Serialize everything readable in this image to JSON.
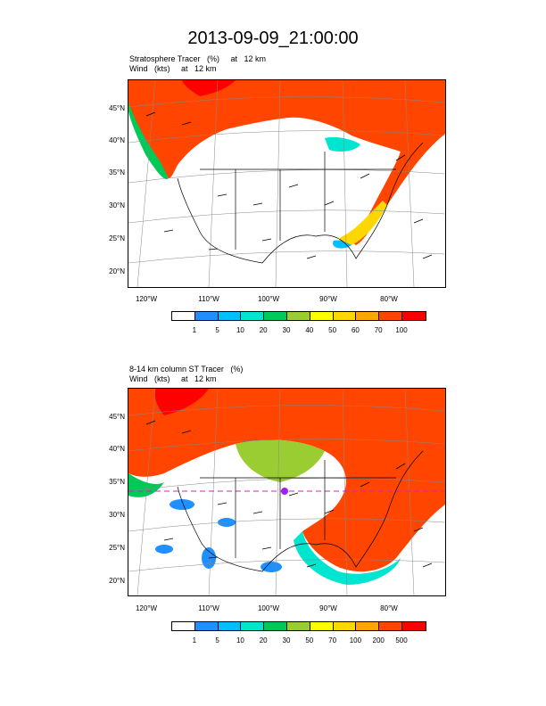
{
  "title": "2013-09-09_21:00:00",
  "panel1": {
    "subtitle_line1": "Stratosphere Tracer   (%)     at   12 km",
    "subtitle_line2": "Wind   (kts)     at   12 km",
    "colorbar_labels": [
      "1",
      "5",
      "10",
      "20",
      "30",
      "40",
      "50",
      "60",
      "70",
      "100"
    ]
  },
  "panel2": {
    "subtitle_line1": "8-14 km column ST Tracer   (%)",
    "subtitle_line2": "Wind   (kts)     at   12 km",
    "colorbar_labels": [
      "1",
      "5",
      "10",
      "20",
      "30",
      "50",
      "70",
      "100",
      "200",
      "500"
    ]
  },
  "lat_labels": [
    "45°N",
    "40°N",
    "35°N",
    "30°N",
    "25°N",
    "20°N"
  ],
  "lon_labels": [
    "120°W",
    "110°W",
    "100°W",
    "90°W",
    "80°W"
  ],
  "colorbar_colors": [
    "#ffffff",
    "#1e90ff",
    "#00bfff",
    "#00e5d0",
    "#00c957",
    "#9acd32",
    "#ffff00",
    "#ffd700",
    "#ffa500",
    "#ff4500",
    "#ff0000"
  ]
}
